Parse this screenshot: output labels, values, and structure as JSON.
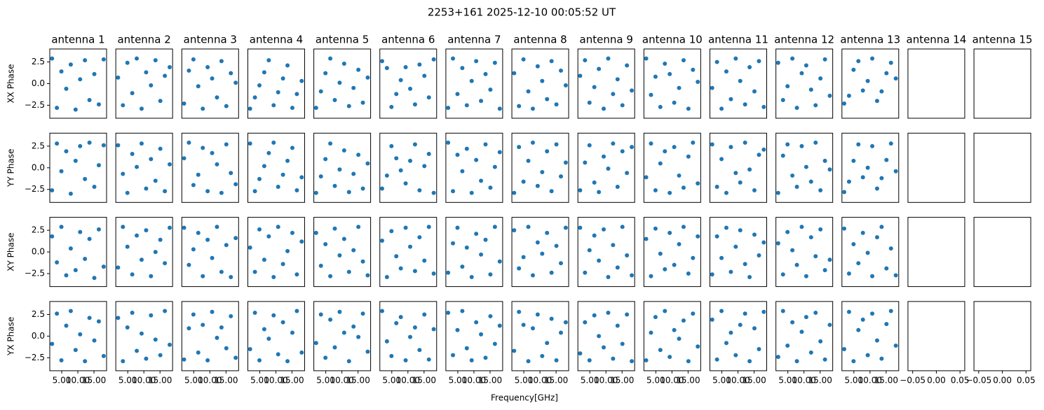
{
  "chart_data": {
    "type": "scatter",
    "title": "2253+161 2025-12-10 00:05:52 UT",
    "xlabel": "Frequency[GHz]",
    "color": "#1f77b4",
    "rows": [
      "XX Phase",
      "YY Phase",
      "XY Phase",
      "YX Phase"
    ],
    "x": [
      2.0,
      3.5,
      4.9,
      6.4,
      7.8,
      9.3,
      10.7,
      12.2,
      13.6,
      15.1,
      16.5,
      18.0
    ],
    "xlim": [
      1.3,
      18.9
    ],
    "xticks": [
      {
        "value": 5,
        "label": "5.00"
      },
      {
        "value": 10,
        "label": "10.00"
      },
      {
        "value": 15,
        "label": "15.00"
      }
    ],
    "empty_xlim": [
      -0.06,
      0.06
    ],
    "empty_xticks": [
      {
        "value": -0.05,
        "label": "−0.05"
      },
      {
        "value": 0,
        "label": "0.00"
      },
      {
        "value": 0.05,
        "label": "0.05"
      }
    ],
    "ylim": [
      -4,
      4
    ],
    "yticks": [
      {
        "value": -2.5,
        "label": "−2.5"
      },
      {
        "value": 0,
        "label": "0.0"
      },
      2.5
    ],
    "antennas": [
      {
        "name": "antenna 1",
        "values": [
          [
            2.9,
            -2.8,
            1.4,
            -0.6,
            2.2,
            -3.0,
            0.5,
            2.7,
            -1.9,
            1.1,
            -2.4,
            2.8
          ],
          [
            -2.6,
            2.8,
            -0.4,
            1.9,
            -3.0,
            0.8,
            2.5,
            -1.3,
            2.9,
            -2.2,
            0.3,
            2.6
          ],
          [
            1.8,
            -1.2,
            2.9,
            -2.7,
            0.4,
            -2.1,
            2.3,
            -0.8,
            1.5,
            -3.0,
            2.6,
            -1.7
          ],
          [
            -0.9,
            2.6,
            -2.8,
            1.2,
            2.9,
            -1.6,
            0.2,
            -2.9,
            2.1,
            -0.5,
            1.7,
            -2.3
          ]
        ]
      },
      {
        "name": "antenna 2",
        "values": [
          [
            0.7,
            -2.5,
            2.4,
            -1.1,
            2.9,
            -2.9,
            1.3,
            -0.2,
            2.7,
            -2.0,
            0.9,
            1.9
          ],
          [
            2.6,
            -0.7,
            -2.9,
            1.6,
            0.1,
            2.8,
            -2.4,
            1.0,
            -1.5,
            2.2,
            -2.7,
            0.4
          ],
          [
            -1.8,
            2.9,
            0.6,
            -2.6,
            1.9,
            -0.9,
            2.5,
            -2.8,
            0.0,
            1.4,
            -1.3,
            2.8
          ],
          [
            2.1,
            -2.9,
            1.0,
            2.7,
            -1.7,
            0.3,
            -2.6,
            2.4,
            -0.4,
            -2.2,
            2.9,
            -1.0
          ]
        ]
      },
      {
        "name": "antenna 3",
        "values": [
          [
            -2.3,
            1.5,
            2.8,
            -0.3,
            -2.9,
            1.9,
            0.6,
            -1.6,
            2.6,
            -2.6,
            1.2,
            0.1
          ],
          [
            1.1,
            2.9,
            -2.0,
            -0.8,
            2.3,
            -2.7,
            1.7,
            0.4,
            -2.9,
            2.7,
            -0.6,
            -1.9
          ],
          [
            2.8,
            -1.5,
            0.3,
            2.2,
            -2.8,
            1.4,
            -0.7,
            2.9,
            -2.3,
            0.8,
            -2.9,
            1.6
          ],
          [
            -2.7,
            0.9,
            2.5,
            -1.9,
            1.3,
            -2.8,
            2.8,
            -0.2,
            1.0,
            -1.4,
            2.3,
            -2.5
          ]
        ]
      },
      {
        "name": "antenna 4",
        "values": [
          [
            -2.9,
            -1.6,
            -0.2,
            1.3,
            2.7,
            -2.5,
            -1.0,
            0.6,
            2.1,
            -2.8,
            -1.2,
            0.3
          ],
          [
            2.8,
            -2.7,
            -1.3,
            0.2,
            1.7,
            2.9,
            -2.2,
            -0.8,
            0.8,
            2.3,
            -2.6,
            -1.1
          ],
          [
            0.5,
            -2.3,
            2.6,
            -0.9,
            1.8,
            -2.9,
            2.9,
            -1.4,
            0.1,
            2.2,
            -2.6,
            1.2
          ],
          [
            -1.5,
            2.7,
            -2.8,
            0.8,
            -0.3,
            2.4,
            -2.1,
            1.6,
            -2.9,
            0.4,
            2.9,
            -1.9
          ]
        ]
      },
      {
        "name": "antenna 5",
        "values": [
          [
            -2.8,
            -0.9,
            1.2,
            2.9,
            -1.9,
            0.1,
            2.3,
            -2.6,
            -0.5,
            1.6,
            -2.2,
            0.7
          ],
          [
            -2.9,
            -1.0,
            1.0,
            2.8,
            -2.1,
            -0.2,
            2.0,
            -2.8,
            -0.7,
            1.5,
            -2.4,
            0.5
          ],
          [
            2.2,
            -1.6,
            0.9,
            -2.8,
            2.7,
            -0.4,
            1.5,
            -2.3,
            0.2,
            2.9,
            -1.1,
            -2.7
          ],
          [
            -0.8,
            2.5,
            -2.5,
            1.9,
            -1.3,
            2.8,
            0.4,
            -2.9,
            1.1,
            -0.1,
            2.6,
            -1.8
          ]
        ]
      },
      {
        "name": "antenna 6",
        "values": [
          [
            2.6,
            1.8,
            -2.7,
            -1.2,
            0.4,
            1.9,
            -0.6,
            -2.4,
            2.2,
            0.9,
            -1.6,
            2.8
          ],
          [
            -2.4,
            -0.9,
            2.5,
            1.1,
            -0.3,
            -1.8,
            0.8,
            2.7,
            -2.6,
            0.2,
            1.6,
            -2.9
          ],
          [
            1.3,
            -2.9,
            2.4,
            -0.5,
            -1.9,
            2.8,
            0.6,
            -2.2,
            1.7,
            -1.0,
            2.9,
            -2.5
          ],
          [
            2.9,
            -0.6,
            -2.3,
            1.5,
            2.2,
            -2.8,
            -0.1,
            1.0,
            -1.6,
            2.5,
            -2.7,
            0.8
          ]
        ]
      },
      {
        "name": "antenna 7",
        "values": [
          [
            -2.8,
            2.9,
            -1.2,
            1.8,
            -2.5,
            0.3,
            2.6,
            -2.0,
            1.1,
            -0.7,
            2.4,
            -2.9
          ],
          [
            2.9,
            -2.7,
            1.5,
            -0.4,
            2.2,
            -2.9,
            0.9,
            -1.5,
            2.7,
            -2.3,
            0.1,
            1.8
          ],
          [
            -2.4,
            1.0,
            2.8,
            -1.7,
            0.5,
            -2.9,
            2.1,
            -0.3,
            1.4,
            -2.6,
            2.9,
            -1.1
          ],
          [
            2.7,
            -2.2,
            0.7,
            2.9,
            -1.4,
            -2.8,
            1.6,
            0.2,
            -2.5,
            2.3,
            -0.9,
            1.2
          ]
        ]
      },
      {
        "name": "antenna 8",
        "values": [
          [
            1.2,
            -2.6,
            2.8,
            -0.9,
            -2.9,
            2.0,
            0.3,
            -1.8,
            2.6,
            -2.4,
            1.5,
            -0.2
          ],
          [
            -2.9,
            2.4,
            -1.6,
            0.8,
            2.9,
            -2.1,
            -0.5,
            1.9,
            -2.7,
            2.7,
            -1.0,
            0.6
          ],
          [
            2.5,
            -1.9,
            -0.6,
            2.9,
            -2.7,
            1.1,
            -0.2,
            2.2,
            -2.4,
            0.7,
            -1.3,
            2.8
          ],
          [
            -1.7,
            2.8,
            1.3,
            -2.9,
            0.9,
            2.5,
            -2.3,
            -0.8,
            2.0,
            -2.8,
            0.4,
            1.6
          ]
        ]
      },
      {
        "name": "antenna 9",
        "values": [
          [
            0.9,
            2.7,
            -2.2,
            -0.4,
            1.7,
            -2.9,
            2.9,
            -1.2,
            0.5,
            -2.5,
            2.1,
            -0.8
          ],
          [
            -2.6,
            0.6,
            2.6,
            -1.7,
            -2.8,
            1.3,
            -0.1,
            2.8,
            -2.2,
            1.9,
            -0.6,
            2.4
          ],
          [
            2.8,
            -2.4,
            0.2,
            1.9,
            -1.0,
            2.6,
            -2.9,
            0.8,
            -1.8,
            2.9,
            -0.4,
            -2.7
          ],
          [
            -2.0,
            1.6,
            -2.8,
            2.4,
            0.0,
            -1.3,
            2.7,
            -2.6,
            1.2,
            -0.9,
            2.5,
            -2.9
          ]
        ]
      },
      {
        "name": "antenna 10",
        "values": [
          [
            2.9,
            -1.3,
            0.8,
            -2.7,
            2.3,
            1.1,
            -2.2,
            -0.5,
            2.7,
            -2.9,
            1.6,
            0.2
          ],
          [
            -1.1,
            2.8,
            -2.6,
            0.5,
            1.9,
            -2.9,
            2.4,
            -0.9,
            -2.3,
            1.3,
            2.9,
            -1.8
          ],
          [
            1.5,
            -2.8,
            2.7,
            -0.2,
            -2.0,
            2.2,
            -1.5,
            0.9,
            2.9,
            -2.5,
            -0.7,
            1.8
          ],
          [
            -2.8,
            0.4,
            2.2,
            -1.6,
            2.9,
            -2.4,
            0.7,
            -0.3,
            1.8,
            -2.9,
            2.6,
            -1.2
          ]
        ]
      },
      {
        "name": "antenna 11",
        "values": [
          [
            -0.5,
            2.5,
            -2.9,
            1.4,
            -1.8,
            2.9,
            0.3,
            -2.4,
            1.9,
            -0.9,
            2.6,
            -2.7
          ],
          [
            2.7,
            -2.2,
            1.0,
            -2.9,
            2.4,
            -0.6,
            -1.7,
            2.9,
            -0.2,
            -2.6,
            1.5,
            2.1
          ],
          [
            -2.6,
            1.8,
            -0.7,
            2.8,
            -2.3,
            0.6,
            2.5,
            -1.4,
            -2.9,
            2.0,
            -0.4,
            1.1
          ],
          [
            1.9,
            -2.7,
            2.9,
            -0.8,
            0.4,
            -2.2,
            1.3,
            2.6,
            -2.9,
            0.9,
            -1.5,
            2.8
          ]
        ]
      },
      {
        "name": "antenna 12",
        "values": [
          [
            2.4,
            -1.9,
            -0.3,
            2.9,
            -2.8,
            1.2,
            2.1,
            -0.7,
            -2.5,
            0.6,
            2.8,
            -1.4
          ],
          [
            -2.9,
            1.4,
            2.7,
            -0.9,
            -2.2,
            2.5,
            0.1,
            -1.6,
            2.9,
            -2.6,
            0.8,
            -0.2
          ],
          [
            1.0,
            -2.6,
            2.3,
            0.2,
            -1.5,
            2.9,
            -2.8,
            1.7,
            -0.5,
            2.6,
            -2.1,
            -0.9
          ],
          [
            -2.4,
            2.9,
            -1.1,
            1.6,
            -2.9,
            0.5,
            2.2,
            -1.9,
            2.7,
            -0.6,
            -2.7,
            1.3
          ]
        ]
      },
      {
        "name": "antenna 13",
        "values": [
          [
            -2.3,
            -1.4,
            1.6,
            2.6,
            -0.8,
            0.3,
            2.9,
            -2.0,
            -0.9,
            1.2,
            2.4,
            0.6
          ],
          [
            -2.8,
            -1.6,
            0.8,
            2.7,
            -1.1,
            0.0,
            2.5,
            -2.4,
            -1.2,
            0.9,
            2.8,
            -0.4
          ],
          [
            2.7,
            -2.5,
            0.9,
            -1.3,
            2.2,
            -0.1,
            -2.8,
            1.7,
            2.9,
            -1.9,
            0.4,
            -2.7
          ],
          [
            -1.5,
            2.8,
            -2.9,
            0.7,
            1.9,
            -2.2,
            2.6,
            -0.5,
            -2.6,
            1.4,
            2.9,
            -1.1
          ]
        ]
      },
      {
        "name": "antenna 14"
      },
      {
        "name": "antenna 15"
      }
    ]
  }
}
